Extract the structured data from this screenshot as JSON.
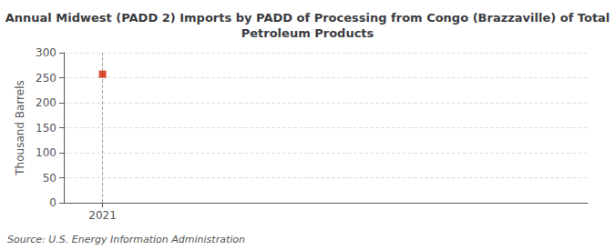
{
  "chart_data": {
    "type": "scatter",
    "title": "Annual Midwest (PADD 2) Imports by PADD of Processing from Congo (Brazzaville) of Total\nPetroleum Products",
    "ylabel": "Thousand Barrels",
    "annotations": [
      "Source: U.S. Energy Information Administration"
    ],
    "x": [
      2021
    ],
    "values": [
      257
    ],
    "color": "#cc2200",
    "marker": "square",
    "xlim": [
      2020.6,
      2026.0
    ],
    "xticks": [
      2021
    ],
    "ylim": [
      0,
      300
    ],
    "yticks": [
      0,
      50,
      100,
      150,
      200,
      250,
      300
    ],
    "grid": true
  }
}
